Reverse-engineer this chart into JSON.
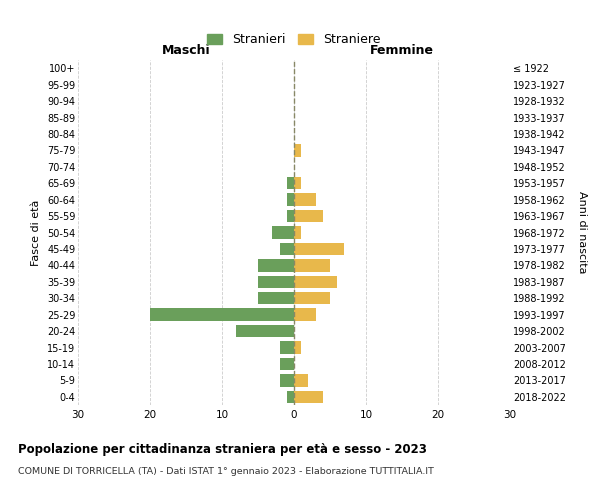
{
  "age_groups": [
    "0-4",
    "5-9",
    "10-14",
    "15-19",
    "20-24",
    "25-29",
    "30-34",
    "35-39",
    "40-44",
    "45-49",
    "50-54",
    "55-59",
    "60-64",
    "65-69",
    "70-74",
    "75-79",
    "80-84",
    "85-89",
    "90-94",
    "95-99",
    "100+"
  ],
  "birth_years": [
    "2018-2022",
    "2013-2017",
    "2008-2012",
    "2003-2007",
    "1998-2002",
    "1993-1997",
    "1988-1992",
    "1983-1987",
    "1978-1982",
    "1973-1977",
    "1968-1972",
    "1963-1967",
    "1958-1962",
    "1953-1957",
    "1948-1952",
    "1943-1947",
    "1938-1942",
    "1933-1937",
    "1928-1932",
    "1923-1927",
    "≤ 1922"
  ],
  "maschi": [
    1,
    2,
    2,
    2,
    8,
    20,
    5,
    5,
    5,
    2,
    3,
    1,
    1,
    1,
    0,
    0,
    0,
    0,
    0,
    0,
    0
  ],
  "femmine": [
    4,
    2,
    0,
    1,
    0,
    3,
    5,
    6,
    5,
    7,
    1,
    4,
    3,
    1,
    0,
    1,
    0,
    0,
    0,
    0,
    0
  ],
  "color_maschi": "#6a9f5b",
  "color_femmine": "#e8b84b",
  "xlabel_left": "Maschi",
  "xlabel_right": "Femmine",
  "ylabel_left": "Fasce di età",
  "ylabel_right": "Anni di nascita",
  "xlim": 30,
  "title": "Popolazione per cittadinanza straniera per età e sesso - 2023",
  "subtitle": "COMUNE DI TORRICELLA (TA) - Dati ISTAT 1° gennaio 2023 - Elaborazione TUTTITALIA.IT",
  "legend_maschi": "Stranieri",
  "legend_femmine": "Straniere",
  "background_color": "#ffffff",
  "grid_color": "#cccccc",
  "center_line_color": "#888866"
}
